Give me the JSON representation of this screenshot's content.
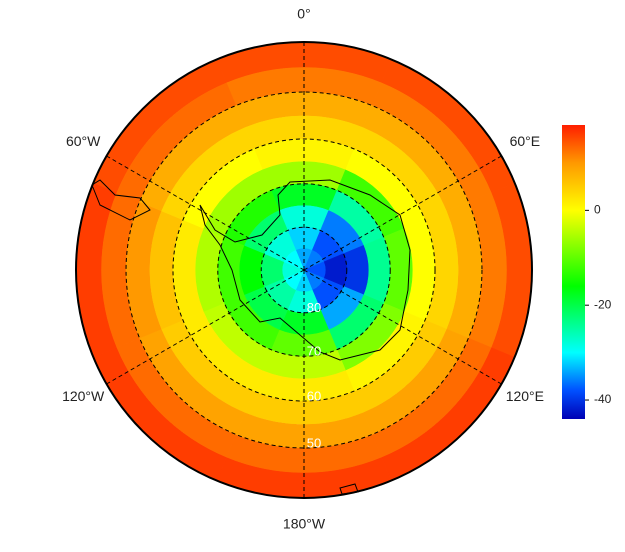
{
  "map": {
    "type": "polar_stereographic",
    "lat_lim": -40,
    "meridians": [
      {
        "value": 0,
        "label": "0°"
      },
      {
        "value": 60,
        "label": "60°E"
      },
      {
        "value": 120,
        "label": "120°E"
      },
      {
        "value": 180,
        "label": "180°W"
      },
      {
        "value": -120,
        "label": "120°W"
      },
      {
        "value": -60,
        "label": "60°W"
      }
    ],
    "parallels": [
      {
        "value": -80,
        "label": "80"
      },
      {
        "value": -70,
        "label": "70"
      },
      {
        "value": -60,
        "label": "60"
      },
      {
        "value": -50,
        "label": "50"
      }
    ],
    "field": {
      "lat_edges": [
        -40,
        -45,
        -50,
        -55,
        -60,
        -65,
        -70,
        -75,
        -80,
        -85,
        -90
      ],
      "lon_start": -22.5,
      "lon_step": 45,
      "values": [
        [
          15,
          15,
          15,
          16,
          16,
          16,
          16,
          15
        ],
        [
          12,
          12,
          12,
          13,
          13,
          13,
          13,
          13
        ],
        [
          8,
          8,
          8,
          9,
          9,
          9,
          10,
          8
        ],
        [
          4,
          4,
          4,
          5,
          5,
          5,
          6,
          4
        ],
        [
          1,
          0,
          0,
          1,
          2,
          2,
          2,
          0
        ],
        [
          -6,
          -12,
          -10,
          -8,
          -4,
          -4,
          -5,
          -6
        ],
        [
          -18,
          -25,
          -24,
          -22,
          -10,
          -12,
          -12,
          -14
        ],
        [
          -28,
          -36,
          -40,
          -34,
          -18,
          -20,
          -16,
          -22
        ],
        [
          -32,
          -38,
          -42,
          -38,
          -28,
          -25,
          -22,
          -28
        ],
        [
          -34,
          -36,
          -38,
          -36,
          -32,
          -30,
          -28,
          -30
        ]
      ]
    },
    "colorbar": {
      "lim": [
        -44,
        18
      ],
      "ticks": [
        0,
        -20,
        -40
      ],
      "colormap": [
        {
          "value": -44,
          "color": "#0000b4"
        },
        {
          "value": -38,
          "color": "#0050ff"
        },
        {
          "value": -30,
          "color": "#00ffff"
        },
        {
          "value": -16,
          "color": "#00ff00"
        },
        {
          "value": 0,
          "color": "#ffff00"
        },
        {
          "value": 10,
          "color": "#ff9900"
        },
        {
          "value": 18,
          "color": "#ff1e00"
        }
      ]
    }
  }
}
